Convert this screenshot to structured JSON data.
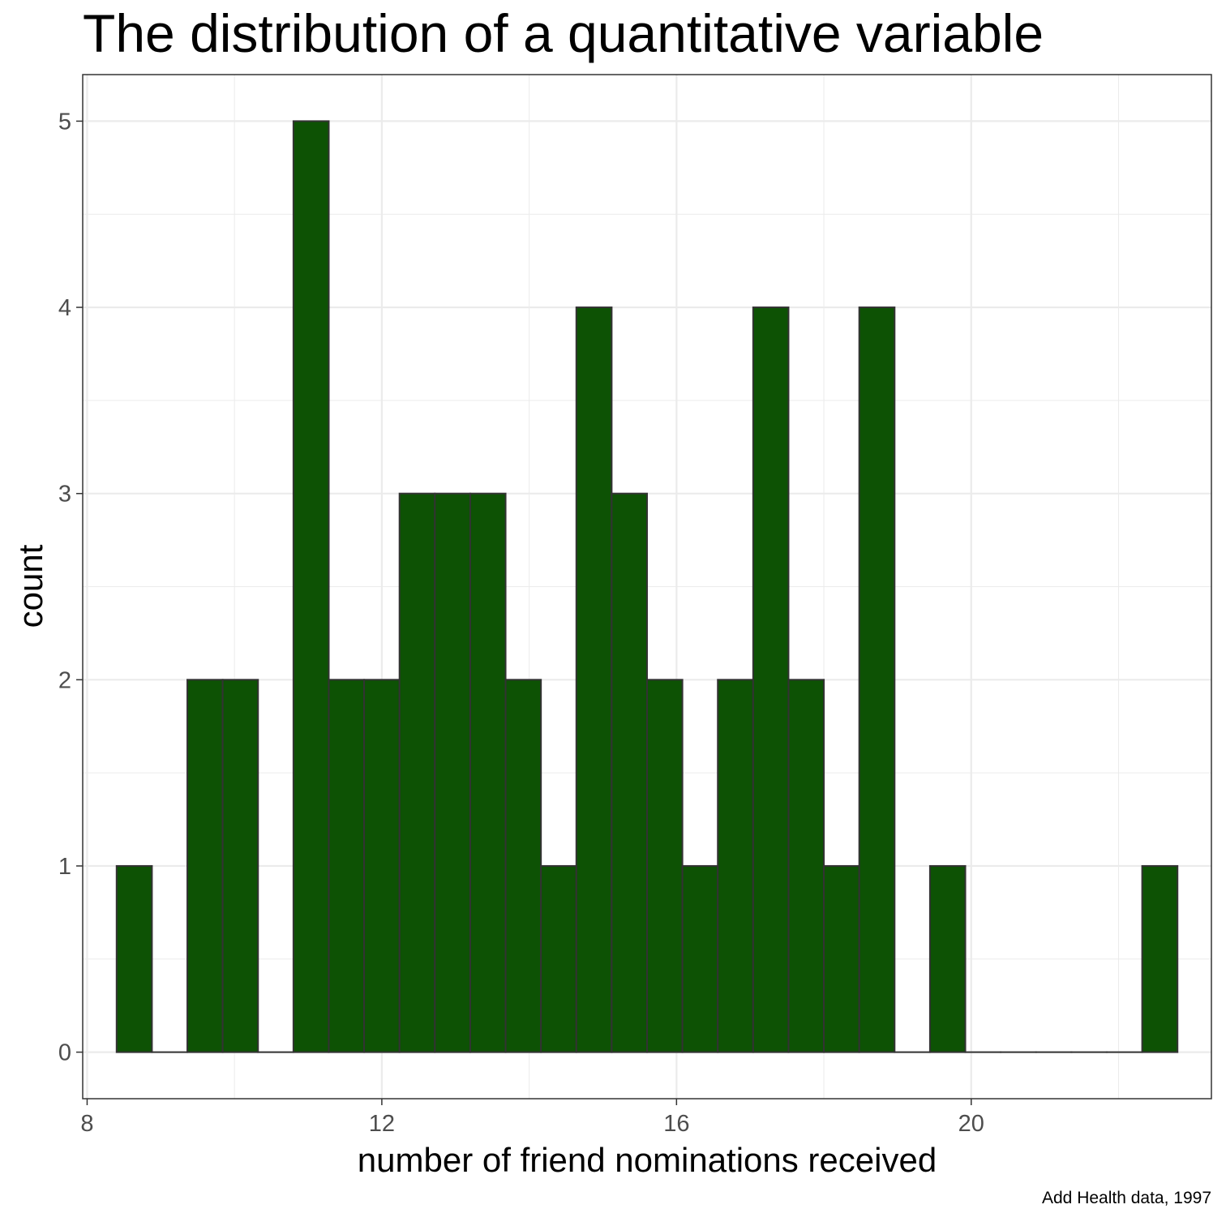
{
  "chart_data": {
    "type": "bar",
    "title": "The distribution of a quantitative variable",
    "xlabel": "number of friend nominations received",
    "ylabel": "count",
    "caption": "Add Health data, 1997",
    "bin_width": 0.48,
    "bins": [
      {
        "start": 8.4,
        "count": 1
      },
      {
        "start": 8.88,
        "count": 0
      },
      {
        "start": 9.36,
        "count": 2
      },
      {
        "start": 9.84,
        "count": 2
      },
      {
        "start": 10.32,
        "count": 0
      },
      {
        "start": 10.8,
        "count": 5
      },
      {
        "start": 11.28,
        "count": 2
      },
      {
        "start": 11.76,
        "count": 2
      },
      {
        "start": 12.24,
        "count": 3
      },
      {
        "start": 12.72,
        "count": 3
      },
      {
        "start": 13.2,
        "count": 3
      },
      {
        "start": 13.68,
        "count": 2
      },
      {
        "start": 14.16,
        "count": 1
      },
      {
        "start": 14.64,
        "count": 4
      },
      {
        "start": 15.12,
        "count": 3
      },
      {
        "start": 15.6,
        "count": 2
      },
      {
        "start": 16.08,
        "count": 1
      },
      {
        "start": 16.56,
        "count": 2
      },
      {
        "start": 17.04,
        "count": 4
      },
      {
        "start": 17.52,
        "count": 2
      },
      {
        "start": 18.0,
        "count": 1
      },
      {
        "start": 18.48,
        "count": 4
      },
      {
        "start": 18.96,
        "count": 0
      },
      {
        "start": 19.44,
        "count": 1
      },
      {
        "start": 19.92,
        "count": 0
      },
      {
        "start": 20.4,
        "count": 0
      },
      {
        "start": 20.88,
        "count": 0
      },
      {
        "start": 21.36,
        "count": 0
      },
      {
        "start": 21.84,
        "count": 0
      },
      {
        "start": 22.32,
        "count": 1
      }
    ],
    "x_ticks": [
      8,
      12,
      16,
      20
    ],
    "y_ticks": [
      0,
      1,
      2,
      3,
      4,
      5
    ],
    "xlim": [
      7.94,
      23.26
    ],
    "ylim": [
      -0.25,
      5.25
    ],
    "grid": true,
    "legend": "none",
    "colors": {
      "fill": "#0d5204",
      "outline": "#333333",
      "grid": "#ebebeb",
      "panel_border": "#333333"
    }
  }
}
